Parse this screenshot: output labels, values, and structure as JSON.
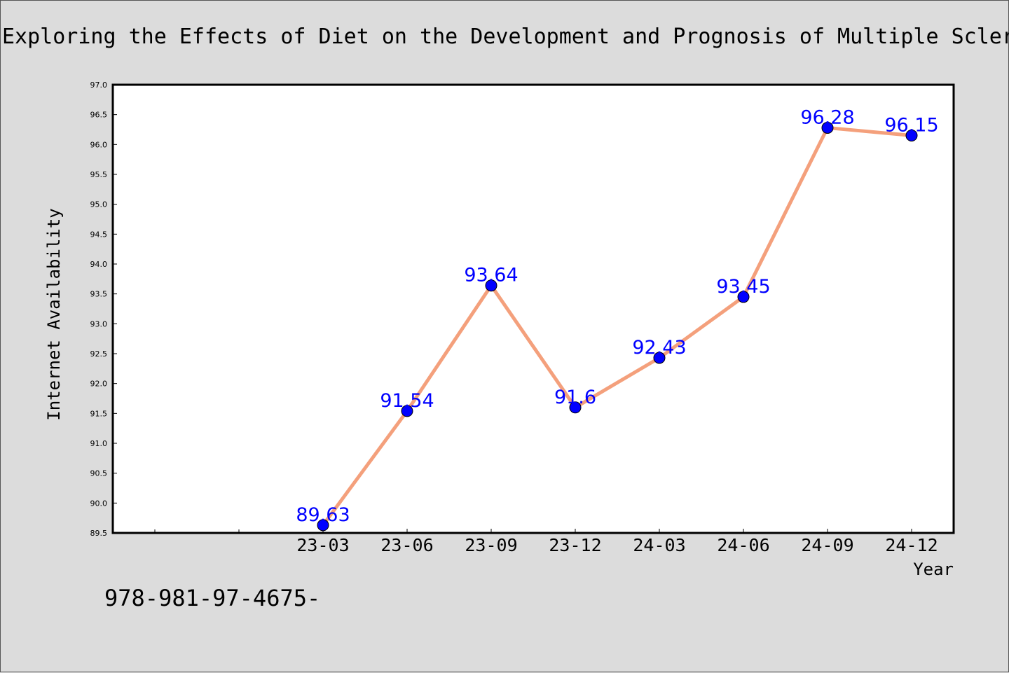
{
  "footnote": "978-981-97-4675-",
  "chart_data": {
    "type": "line",
    "title": "Exploring the Effects of Diet on the Development and Prognosis of Multiple Scler",
    "xlabel": "Year",
    "ylabel": "Internet Availability",
    "categories": [
      "23-03",
      "23-06",
      "23-09",
      "23-12",
      "24-03",
      "24-06",
      "24-09",
      "24-12"
    ],
    "values": [
      89.63,
      91.54,
      93.64,
      91.6,
      92.43,
      93.45,
      96.28,
      96.15
    ],
    "data_labels": [
      "89.63",
      "91.54",
      "93.64",
      "91.6",
      "92.43",
      "93.45",
      "96.28",
      "96.15"
    ],
    "ylim": [
      89.5,
      97.0
    ],
    "yticks": [
      "89.5",
      "90.0",
      "90.5",
      "91.0",
      "91.5",
      "92.0",
      "92.5",
      "93.0",
      "93.5",
      "94.0",
      "94.5",
      "95.0",
      "95.5",
      "96.0",
      "96.5",
      "97.0"
    ],
    "line_color": "#f4a07c",
    "marker_color": "#0000ff",
    "label_color": "#0000ff",
    "grid": false,
    "legend": "none"
  }
}
